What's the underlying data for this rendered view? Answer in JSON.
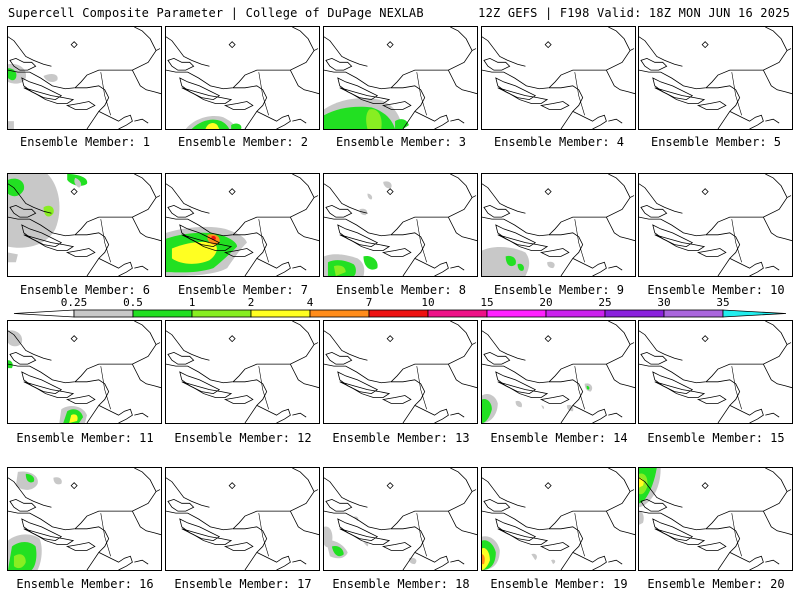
{
  "header": {
    "title": "Supercell Composite Parameter | College of DuPage NEXLAB",
    "run_info": "12Z GEFS | F198 Valid: 18Z MON JUN 16 2025"
  },
  "member_label_prefix": "Ensemble Member:",
  "members": [
    {
      "id": "1",
      "label": "Ensemble Member: 1",
      "max_scp": 1
    },
    {
      "id": "2",
      "label": "Ensemble Member: 2",
      "max_scp": 2
    },
    {
      "id": "3",
      "label": "Ensemble Member: 3",
      "max_scp": 1
    },
    {
      "id": "4",
      "label": "Ensemble Member: 4",
      "max_scp": 0
    },
    {
      "id": "5",
      "label": "Ensemble Member: 5",
      "max_scp": 0
    },
    {
      "id": "6",
      "label": "Ensemble Member: 6",
      "max_scp": 1
    },
    {
      "id": "7",
      "label": "Ensemble Member: 7",
      "max_scp": 4
    },
    {
      "id": "8",
      "label": "Ensemble Member: 8",
      "max_scp": 2
    },
    {
      "id": "9",
      "label": "Ensemble Member: 9",
      "max_scp": 1
    },
    {
      "id": "10",
      "label": "Ensemble Member: 10",
      "max_scp": 0
    },
    {
      "id": "11",
      "label": "Ensemble Member: 11",
      "max_scp": 2
    },
    {
      "id": "12",
      "label": "Ensemble Member: 12",
      "max_scp": 0
    },
    {
      "id": "13",
      "label": "Ensemble Member: 13",
      "max_scp": 0
    },
    {
      "id": "14",
      "label": "Ensemble Member: 14",
      "max_scp": 1
    },
    {
      "id": "15",
      "label": "Ensemble Member: 15",
      "max_scp": 0
    },
    {
      "id": "16",
      "label": "Ensemble Member: 16",
      "max_scp": 1
    },
    {
      "id": "17",
      "label": "Ensemble Member: 17",
      "max_scp": 0
    },
    {
      "id": "18",
      "label": "Ensemble Member: 18",
      "max_scp": 1
    },
    {
      "id": "19",
      "label": "Ensemble Member: 19",
      "max_scp": 2
    },
    {
      "id": "20",
      "label": "Ensemble Member: 20",
      "max_scp": 1
    }
  ],
  "color_scale": {
    "ticks": [
      "0.25",
      "0.5",
      "1",
      "2",
      "4",
      "7",
      "10",
      "15",
      "20",
      "25",
      "30",
      "35"
    ],
    "colors": [
      "#c8c8c8",
      "#22e022",
      "#88ee22",
      "#ffff22",
      "#ff8c1a",
      "#ee1010",
      "#ee1088",
      "#ff20ff",
      "#cc22ee",
      "#8a22dd",
      "#aa66dd",
      "#22eeee"
    ]
  }
}
